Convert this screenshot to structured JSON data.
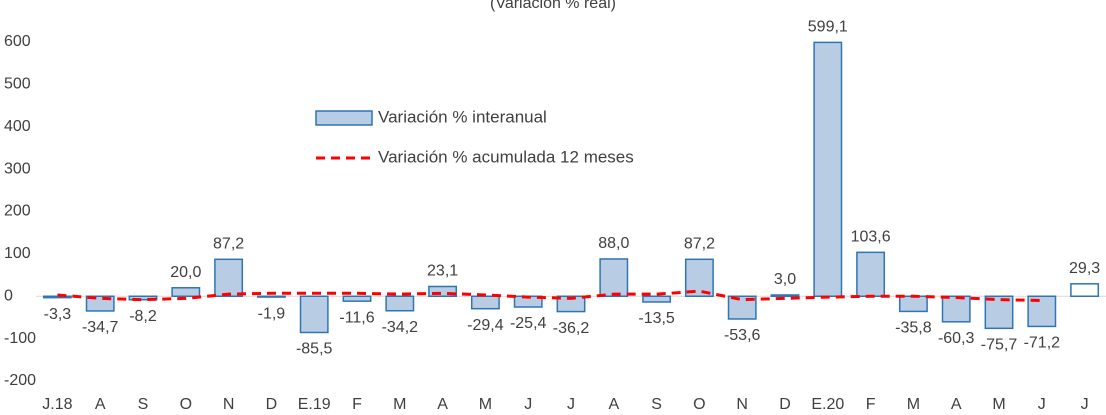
{
  "chart_data": {
    "type": "bar-line",
    "subtitle": "(Variación % real)",
    "categories": [
      "J.18",
      "A",
      "S",
      "O",
      "N",
      "D",
      "E.19",
      "F",
      "M",
      "A",
      "M",
      "J",
      "J",
      "A",
      "S",
      "O",
      "N",
      "D",
      "E.20",
      "F",
      "M",
      "A",
      "M",
      "J",
      "J"
    ],
    "ylim": [
      -200,
      600
    ],
    "yticks": [
      -200,
      -100,
      0,
      100,
      200,
      300,
      400,
      500,
      600
    ],
    "legend": "upper-center",
    "series": [
      {
        "name": "Variación % interanual",
        "type": "bar",
        "color": "#b8cce4",
        "edgecolor": "#2e75b6",
        "values": [
          -3.3,
          -34.7,
          -8.2,
          20.0,
          87.2,
          -1.9,
          -85.5,
          -11.6,
          -34.2,
          23.1,
          -29.4,
          -25.4,
          -36.2,
          88.0,
          -13.5,
          87.2,
          -53.6,
          3.0,
          599.1,
          103.6,
          -35.8,
          -60.3,
          -75.7,
          -71.2,
          29.3
        ],
        "value_labels": [
          "-3,3",
          "-34,7",
          "-8,2",
          "20,0",
          "87,2",
          "-1,9",
          "-85,5",
          "-11,6",
          "-34,2",
          "23,1",
          "-29,4",
          "-25,4",
          "-36,2",
          "88,0",
          "-13,5",
          "87,2",
          "-53,6",
          "3,0",
          "599,1",
          "103,6",
          "-35,8",
          "-60,3",
          "-75,7",
          "-71,2",
          "29,3"
        ],
        "fills": [
          "#b8cce4",
          "#b8cce4",
          "#b8cce4",
          "#b8cce4",
          "#b8cce4",
          "#b8cce4",
          "#b8cce4",
          "#b8cce4",
          "#b8cce4",
          "#b8cce4",
          "#b8cce4",
          "#b8cce4",
          "#b8cce4",
          "#b8cce4",
          "#b8cce4",
          "#b8cce4",
          "#b8cce4",
          "#b8cce4",
          "#b8cce4",
          "#b8cce4",
          "#b8cce4",
          "#b8cce4",
          "#b8cce4",
          "#b8cce4",
          "#ffffff"
        ]
      },
      {
        "name": "Variación % acumulada 12 meses",
        "type": "line",
        "color": "#ff0000",
        "dashed": true,
        "values": [
          3,
          -5,
          -8,
          -5,
          5,
          7,
          7,
          7,
          5,
          7,
          3,
          -2,
          -5,
          5,
          5,
          12,
          -8,
          -5,
          -2,
          0,
          0,
          -3,
          -8,
          -10,
          null
        ]
      }
    ]
  }
}
